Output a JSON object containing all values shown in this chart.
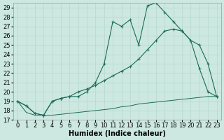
{
  "xlabel": "Humidex (Indice chaleur)",
  "bg_color": "#cce8e0",
  "line_color": "#1a6b5a",
  "ylim": [
    17,
    29.5
  ],
  "xlim": [
    -0.5,
    23.5
  ],
  "yticks": [
    17,
    18,
    19,
    20,
    21,
    22,
    23,
    24,
    25,
    26,
    27,
    28,
    29
  ],
  "xticks": [
    0,
    1,
    2,
    3,
    4,
    5,
    6,
    7,
    8,
    9,
    10,
    11,
    12,
    13,
    14,
    15,
    16,
    17,
    18,
    19,
    20,
    21,
    22,
    23
  ],
  "series1_x": [
    0,
    1,
    2,
    3,
    4,
    5,
    6,
    7,
    8,
    9,
    10,
    11,
    12,
    13,
    14,
    15,
    16,
    17,
    18,
    19,
    20,
    21,
    22,
    23
  ],
  "series1_y": [
    19.0,
    18.5,
    17.7,
    17.5,
    19.0,
    19.3,
    19.5,
    19.5,
    20.0,
    21.0,
    23.0,
    27.5,
    27.0,
    27.7,
    25.0,
    29.2,
    29.5,
    28.5,
    27.5,
    26.5,
    25.5,
    25.0,
    23.0,
    19.5
  ],
  "series2_x": [
    0,
    1,
    2,
    3,
    4,
    5,
    6,
    7,
    8,
    9,
    10,
    11,
    12,
    13,
    14,
    15,
    16,
    17,
    18,
    19,
    20,
    21,
    22,
    23
  ],
  "series2_y": [
    19.0,
    18.5,
    17.7,
    17.5,
    19.0,
    19.3,
    19.5,
    20.0,
    20.3,
    20.7,
    21.2,
    21.7,
    22.2,
    22.7,
    23.5,
    24.5,
    25.5,
    26.5,
    26.7,
    26.5,
    25.5,
    22.5,
    20.0,
    19.5
  ],
  "series3_x": [
    0,
    1,
    2,
    3,
    4,
    5,
    6,
    7,
    8,
    9,
    10,
    11,
    12,
    13,
    14,
    15,
    16,
    17,
    18,
    19,
    20,
    21,
    22,
    23
  ],
  "series3_y": [
    19.0,
    17.8,
    17.5,
    17.5,
    17.5,
    17.6,
    17.7,
    17.8,
    17.9,
    18.0,
    18.1,
    18.2,
    18.4,
    18.5,
    18.7,
    18.8,
    18.9,
    19.0,
    19.1,
    19.2,
    19.3,
    19.4,
    19.5,
    19.5
  ],
  "grid_color": "#b8d8d0",
  "fontsize_xlabel": 7,
  "fontsize_ticks": 6
}
